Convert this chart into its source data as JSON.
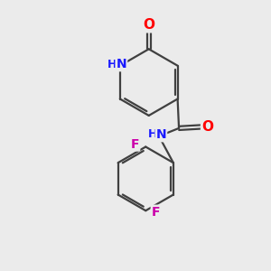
{
  "bg_color": "#ebebeb",
  "atom_colors": {
    "C": "#000000",
    "N": "#1a1aff",
    "O": "#ff0000",
    "F": "#cc00aa",
    "H": "#4444aa"
  },
  "bond_color": "#404040",
  "bond_width": 1.6,
  "figsize": [
    3.0,
    3.0
  ],
  "dpi": 100
}
